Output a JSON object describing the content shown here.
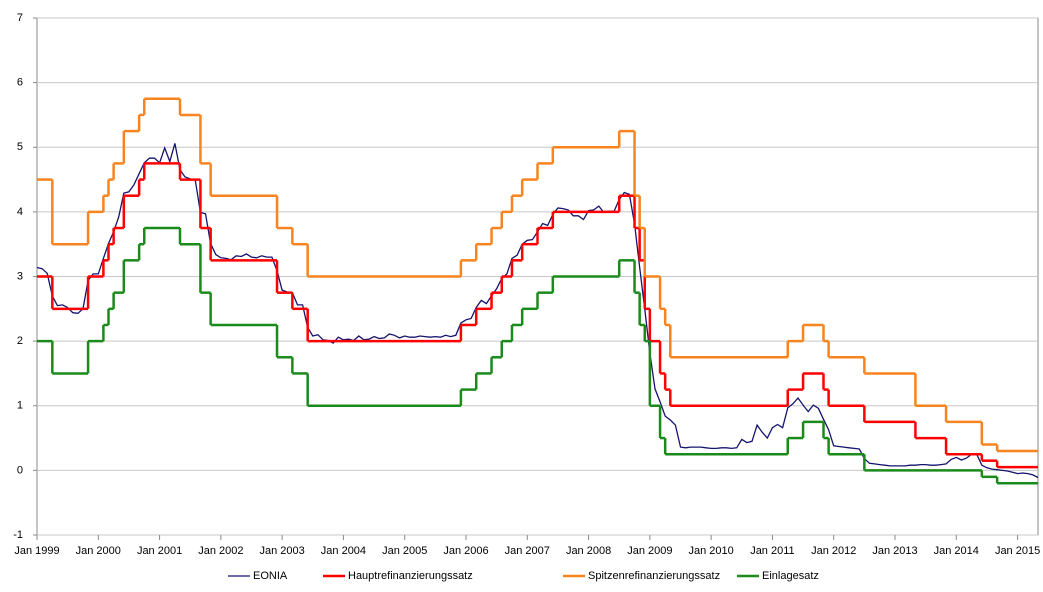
{
  "chart_data": {
    "type": "line",
    "xlim": [
      "1999-01",
      "2015-05"
    ],
    "xticks": [
      {
        "value": "1999-01",
        "label": "Jan 1999"
      },
      {
        "value": "2000-01",
        "label": "Jan 2000"
      },
      {
        "value": "2001-01",
        "label": "Jan 2001"
      },
      {
        "value": "2002-01",
        "label": "Jan 2002"
      },
      {
        "value": "2003-01",
        "label": "Jan 2003"
      },
      {
        "value": "2004-01",
        "label": "Jan 2004"
      },
      {
        "value": "2005-01",
        "label": "Jan 2005"
      },
      {
        "value": "2006-01",
        "label": "Jan 2006"
      },
      {
        "value": "2007-01",
        "label": "Jan 2007"
      },
      {
        "value": "2008-01",
        "label": "Jan 2008"
      },
      {
        "value": "2009-01",
        "label": "Jan 2009"
      },
      {
        "value": "2010-01",
        "label": "Jan 2010"
      },
      {
        "value": "2011-01",
        "label": "Jan 2011"
      },
      {
        "value": "2012-01",
        "label": "Jan 2012"
      },
      {
        "value": "2013-01",
        "label": "Jan 2013"
      },
      {
        "value": "2014-01",
        "label": "Jan 2014"
      },
      {
        "value": "2015-01",
        "label": "Jan 2015"
      }
    ],
    "ylim": [
      -1,
      7
    ],
    "yticks": [
      -1,
      0,
      1,
      2,
      3,
      4,
      5,
      6,
      7
    ],
    "grid": true,
    "legend": "bottom",
    "series": [
      {
        "name": "EONIA",
        "color": "#14146e",
        "x": [
          "1999-01",
          "1999-02",
          "1999-03",
          "1999-04",
          "1999-05",
          "1999-06",
          "1999-07",
          "1999-08",
          "1999-09",
          "1999-10",
          "1999-11",
          "1999-12",
          "2000-01",
          "2000-02",
          "2000-03",
          "2000-04",
          "2000-05",
          "2000-06",
          "2000-07",
          "2000-08",
          "2000-09",
          "2000-10",
          "2000-11",
          "2000-12",
          "2001-01",
          "2001-02",
          "2001-03",
          "2001-04",
          "2001-05",
          "2001-06",
          "2001-07",
          "2001-08",
          "2001-09",
          "2001-10",
          "2001-11",
          "2001-12",
          "2002-01",
          "2002-02",
          "2002-03",
          "2002-04",
          "2002-05",
          "2002-06",
          "2002-07",
          "2002-08",
          "2002-09",
          "2002-10",
          "2002-11",
          "2002-12",
          "2003-01",
          "2003-02",
          "2003-03",
          "2003-04",
          "2003-05",
          "2003-06",
          "2003-07",
          "2003-08",
          "2003-09",
          "2003-10",
          "2003-11",
          "2003-12",
          "2004-01",
          "2004-02",
          "2004-03",
          "2004-04",
          "2004-05",
          "2004-06",
          "2004-07",
          "2004-08",
          "2004-09",
          "2004-10",
          "2004-11",
          "2004-12",
          "2005-01",
          "2005-02",
          "2005-03",
          "2005-04",
          "2005-05",
          "2005-06",
          "2005-07",
          "2005-08",
          "2005-09",
          "2005-10",
          "2005-11",
          "2005-12",
          "2006-01",
          "2006-02",
          "2006-03",
          "2006-04",
          "2006-05",
          "2006-06",
          "2006-07",
          "2006-08",
          "2006-09",
          "2006-10",
          "2006-11",
          "2006-12",
          "2007-01",
          "2007-02",
          "2007-03",
          "2007-04",
          "2007-05",
          "2007-06",
          "2007-07",
          "2007-08",
          "2007-09",
          "2007-10",
          "2007-11",
          "2007-12",
          "2008-01",
          "2008-02",
          "2008-03",
          "2008-04",
          "2008-05",
          "2008-06",
          "2008-07",
          "2008-08",
          "2008-09",
          "2008-10",
          "2008-11",
          "2008-12",
          "2009-01",
          "2009-02",
          "2009-03",
          "2009-04",
          "2009-05",
          "2009-06",
          "2009-07",
          "2009-08",
          "2009-09",
          "2009-10",
          "2009-11",
          "2009-12",
          "2010-01",
          "2010-02",
          "2010-03",
          "2010-04",
          "2010-05",
          "2010-06",
          "2010-07",
          "2010-08",
          "2010-09",
          "2010-10",
          "2010-11",
          "2010-12",
          "2011-01",
          "2011-02",
          "2011-03",
          "2011-04",
          "2011-05",
          "2011-06",
          "2011-07",
          "2011-08",
          "2011-09",
          "2011-10",
          "2011-11",
          "2011-12",
          "2012-01",
          "2012-02",
          "2012-03",
          "2012-04",
          "2012-05",
          "2012-06",
          "2012-07",
          "2012-08",
          "2012-09",
          "2012-10",
          "2012-11",
          "2012-12",
          "2013-01",
          "2013-02",
          "2013-03",
          "2013-04",
          "2013-05",
          "2013-06",
          "2013-07",
          "2013-08",
          "2013-09",
          "2013-10",
          "2013-11",
          "2013-12",
          "2014-01",
          "2014-02",
          "2014-03",
          "2014-04",
          "2014-05",
          "2014-06",
          "2014-07",
          "2014-08",
          "2014-09",
          "2014-10",
          "2014-11",
          "2014-12",
          "2015-01",
          "2015-02",
          "2015-03",
          "2015-04",
          "2015-05"
        ],
        "values": [
          3.14,
          3.12,
          3.05,
          2.7,
          2.55,
          2.56,
          2.52,
          2.44,
          2.43,
          2.5,
          2.94,
          3.04,
          3.04,
          3.28,
          3.51,
          3.69,
          3.92,
          4.29,
          4.31,
          4.42,
          4.59,
          4.76,
          4.83,
          4.83,
          4.76,
          4.99,
          4.78,
          5.06,
          4.65,
          4.54,
          4.51,
          4.49,
          3.99,
          3.97,
          3.51,
          3.34,
          3.29,
          3.28,
          3.26,
          3.32,
          3.31,
          3.35,
          3.3,
          3.29,
          3.32,
          3.3,
          3.3,
          3.09,
          2.79,
          2.76,
          2.75,
          2.56,
          2.56,
          2.21,
          2.08,
          2.1,
          2.02,
          2.01,
          1.97,
          2.06,
          2.02,
          2.03,
          2.01,
          2.08,
          2.02,
          2.03,
          2.07,
          2.04,
          2.05,
          2.11,
          2.09,
          2.05,
          2.08,
          2.06,
          2.06,
          2.08,
          2.07,
          2.06,
          2.07,
          2.06,
          2.09,
          2.07,
          2.09,
          2.28,
          2.33,
          2.35,
          2.52,
          2.63,
          2.58,
          2.7,
          2.81,
          2.97,
          3.04,
          3.28,
          3.33,
          3.5,
          3.56,
          3.57,
          3.69,
          3.82,
          3.79,
          3.96,
          4.06,
          4.05,
          4.03,
          3.94,
          3.94,
          3.88,
          4.02,
          4.03,
          4.09,
          3.99,
          4.01,
          4.01,
          4.19,
          4.3,
          4.27,
          3.82,
          3.15,
          2.49,
          1.81,
          1.26,
          1.06,
          0.84,
          0.78,
          0.7,
          0.36,
          0.35,
          0.36,
          0.36,
          0.36,
          0.35,
          0.34,
          0.34,
          0.35,
          0.35,
          0.34,
          0.35,
          0.48,
          0.43,
          0.45,
          0.7,
          0.59,
          0.5,
          0.66,
          0.71,
          0.66,
          0.97,
          1.03,
          1.12,
          1.01,
          0.91,
          1.01,
          0.96,
          0.79,
          0.63,
          0.38,
          0.37,
          0.36,
          0.35,
          0.34,
          0.33,
          0.18,
          0.11,
          0.1,
          0.09,
          0.08,
          0.07,
          0.07,
          0.07,
          0.07,
          0.08,
          0.08,
          0.09,
          0.09,
          0.08,
          0.08,
          0.09,
          0.1,
          0.17,
          0.2,
          0.16,
          0.19,
          0.25,
          0.25,
          0.08,
          0.04,
          0.02,
          0.01,
          0.0,
          -0.01,
          -0.03,
          -0.05,
          -0.04,
          -0.05,
          -0.07,
          -0.11
        ]
      },
      {
        "name": "Hauptrefinanzierungssatz",
        "color": "#ff0000",
        "drawstyle": "steps-post",
        "x": [
          "1999-01",
          "1999-04",
          "1999-11",
          "2000-02",
          "2000-03",
          "2000-04",
          "2000-06",
          "2000-09",
          "2000-10",
          "2001-05",
          "2001-09",
          "2001-11",
          "2002-12",
          "2003-03",
          "2003-06",
          "2005-12",
          "2006-03",
          "2006-06",
          "2006-08",
          "2006-10",
          "2006-12",
          "2007-03",
          "2007-06",
          "2008-07",
          "2008-10",
          "2008-11",
          "2008-12",
          "2009-01",
          "2009-03",
          "2009-04",
          "2009-05",
          "2011-04",
          "2011-07",
          "2011-11",
          "2011-12",
          "2012-07",
          "2013-05",
          "2013-11",
          "2014-06",
          "2014-09",
          "2015-05"
        ],
        "values": [
          3.0,
          2.5,
          3.0,
          3.25,
          3.5,
          3.75,
          4.25,
          4.5,
          4.75,
          4.5,
          3.75,
          3.25,
          2.75,
          2.5,
          2.0,
          2.25,
          2.5,
          2.75,
          3.0,
          3.25,
          3.5,
          3.75,
          4.0,
          4.25,
          3.75,
          3.25,
          2.5,
          2.0,
          1.5,
          1.25,
          1.0,
          1.25,
          1.5,
          1.25,
          1.0,
          0.75,
          0.5,
          0.25,
          0.15,
          0.05,
          0.05
        ]
      },
      {
        "name": "Spitzenrefinanzierungssatz",
        "color": "#f7841f",
        "drawstyle": "steps-post",
        "x": [
          "1999-01",
          "1999-04",
          "1999-11",
          "2000-02",
          "2000-03",
          "2000-04",
          "2000-06",
          "2000-09",
          "2000-10",
          "2001-05",
          "2001-09",
          "2001-11",
          "2002-12",
          "2003-03",
          "2003-06",
          "2005-12",
          "2006-03",
          "2006-06",
          "2006-08",
          "2006-10",
          "2006-12",
          "2007-03",
          "2007-06",
          "2008-07",
          "2008-10",
          "2008-11",
          "2008-12",
          "2009-03",
          "2009-04",
          "2009-05",
          "2011-04",
          "2011-07",
          "2011-11",
          "2011-12",
          "2012-07",
          "2013-05",
          "2013-11",
          "2014-06",
          "2014-09",
          "2015-05"
        ],
        "values": [
          4.5,
          3.5,
          4.0,
          4.25,
          4.5,
          4.75,
          5.25,
          5.5,
          5.75,
          5.5,
          4.75,
          4.25,
          3.75,
          3.5,
          3.0,
          3.25,
          3.5,
          3.75,
          4.0,
          4.25,
          4.5,
          4.75,
          5.0,
          5.25,
          4.25,
          3.75,
          3.0,
          2.5,
          2.25,
          1.75,
          2.0,
          2.25,
          2.0,
          1.75,
          1.5,
          1.0,
          0.75,
          0.4,
          0.3,
          0.3
        ]
      },
      {
        "name": "Einlagesatz",
        "color": "#1a8a1a",
        "drawstyle": "steps-post",
        "x": [
          "1999-01",
          "1999-04",
          "1999-11",
          "2000-02",
          "2000-03",
          "2000-04",
          "2000-06",
          "2000-09",
          "2000-10",
          "2001-05",
          "2001-09",
          "2001-11",
          "2002-12",
          "2003-03",
          "2003-06",
          "2005-12",
          "2006-03",
          "2006-06",
          "2006-08",
          "2006-10",
          "2006-12",
          "2007-03",
          "2007-06",
          "2008-07",
          "2008-10",
          "2008-11",
          "2008-12",
          "2009-01",
          "2009-03",
          "2009-04",
          "2011-04",
          "2011-07",
          "2011-11",
          "2011-12",
          "2012-07",
          "2014-06",
          "2014-09",
          "2015-05"
        ],
        "values": [
          2.0,
          1.5,
          2.0,
          2.25,
          2.5,
          2.75,
          3.25,
          3.5,
          3.75,
          3.5,
          2.75,
          2.25,
          1.75,
          1.5,
          1.0,
          1.25,
          1.5,
          1.75,
          2.0,
          2.25,
          2.5,
          2.75,
          3.0,
          3.25,
          2.75,
          2.25,
          2.0,
          1.0,
          0.5,
          0.25,
          0.5,
          0.75,
          0.5,
          0.25,
          0.0,
          -0.1,
          -0.2,
          -0.2
        ]
      }
    ]
  }
}
